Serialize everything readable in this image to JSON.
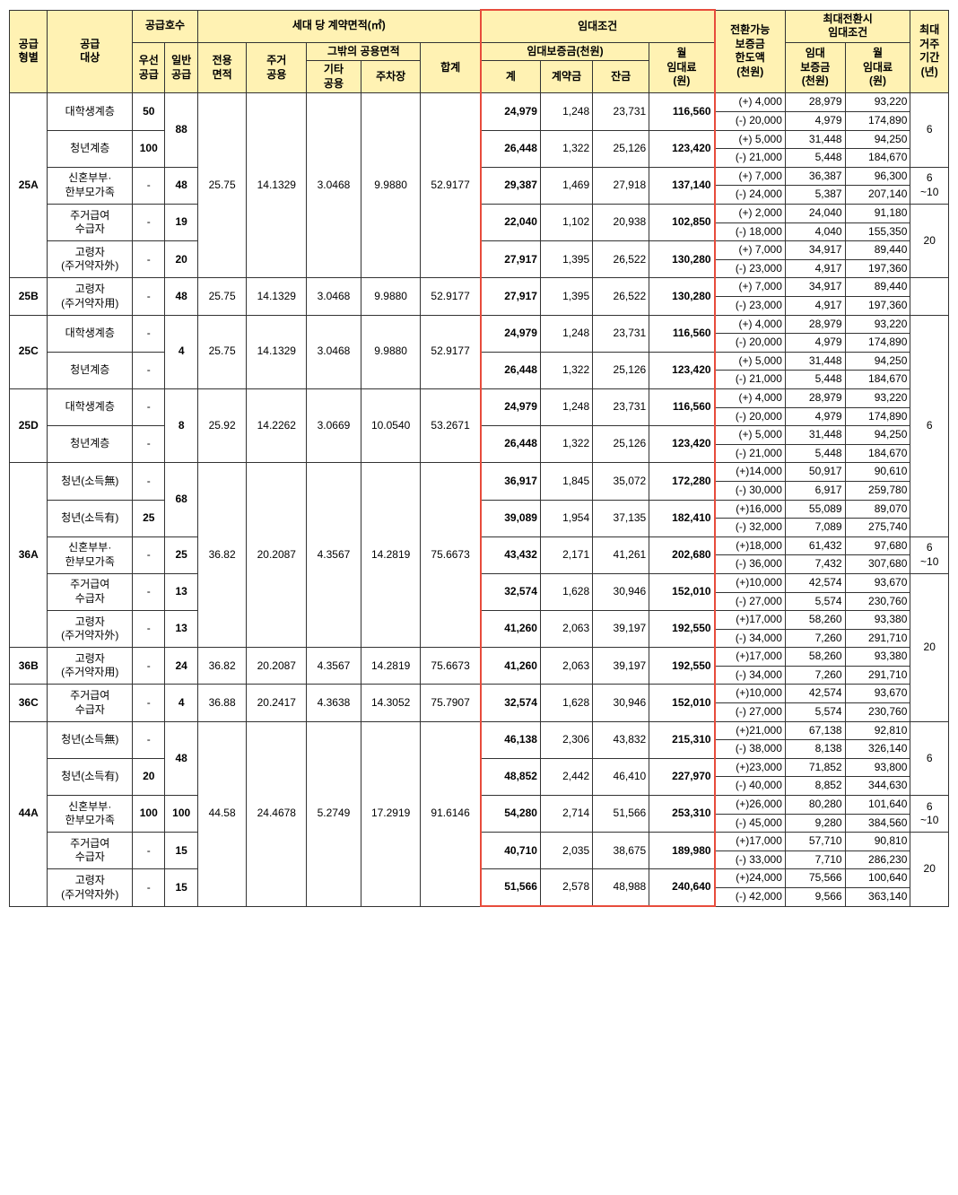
{
  "headers": {
    "supply_type": "공급\n형별",
    "supply_target": "공급\n대상",
    "supply_count": "공급호수",
    "priority": "우선\n공급",
    "general": "일반\n공급",
    "contract_area": "세대 당 계약면적(㎡)",
    "exclusive": "전용\n면적",
    "residential_common": "주거\n공용",
    "other_common_area": "그밖의 공용면적",
    "other_common": "기타\n공용",
    "parking": "주차장",
    "total": "합계",
    "lease_cond": "임대조건",
    "deposit": "임대보증금(천원)",
    "deposit_total": "계",
    "contract_fee": "계약금",
    "balance": "잔금",
    "monthly_rent": "월\n임대료\n(원)",
    "convertible": "전환가능\n보증금\n한도액\n(천원)",
    "max_conv": "최대전환시\n임대조건",
    "conv_deposit": "임대\n보증금\n(천원)",
    "conv_rent": "월\n임대료\n(원)",
    "max_period": "최대\n거주\n기간\n(년)"
  },
  "types": {
    "t25A": "25A",
    "t25B": "25B",
    "t25C": "25C",
    "t25D": "25D",
    "t36A": "36A",
    "t36B": "36B",
    "t36C": "36C",
    "t44A": "44A"
  },
  "targets": {
    "univ": "대학생계층",
    "youth": "청년계층",
    "newlywed": "신혼부부·\n한부모가족",
    "housing_benefit": "주거급여\n수급자",
    "elderly_out": "고령자\n(주거약자外)",
    "elderly_in": "고령자\n(주거약자用)",
    "youth_no_income": "청년(소득無)",
    "youth_income": "청년(소득有)"
  },
  "areas": {
    "a25": {
      "excl": "25.75",
      "res": "14.1329",
      "oth": "3.0468",
      "park": "9.9880",
      "tot": "52.9177"
    },
    "a25D": {
      "excl": "25.92",
      "res": "14.2262",
      "oth": "3.0669",
      "park": "10.0540",
      "tot": "53.2671"
    },
    "a36": {
      "excl": "36.82",
      "res": "20.2087",
      "oth": "4.3567",
      "park": "14.2819",
      "tot": "75.6673"
    },
    "a36C": {
      "excl": "36.88",
      "res": "20.2417",
      "oth": "4.3638",
      "park": "14.3052",
      "tot": "75.7907"
    },
    "a44": {
      "excl": "44.58",
      "res": "24.4678",
      "oth": "5.2749",
      "park": "17.2919",
      "tot": "91.6146"
    }
  },
  "rows": [
    {
      "p": "50",
      "g_span": true,
      "g": "88",
      "d": "24,979",
      "c": "1,248",
      "b": "23,731",
      "r": "116,560",
      "cv": "(+)  4,000",
      "cd": "28,979",
      "cr": "93,220",
      "period": "6"
    },
    {
      "cv": "(-) 20,000",
      "cd": "4,979",
      "cr": "174,890"
    },
    {
      "p": "100",
      "d": "26,448",
      "c": "1,322",
      "b": "25,126",
      "r": "123,420",
      "cv": "(+)  5,000",
      "cd": "31,448",
      "cr": "94,250"
    },
    {
      "cv": "(-) 21,000",
      "cd": "5,448",
      "cr": "184,670"
    },
    {
      "p": "-",
      "g": "48",
      "d": "29,387",
      "c": "1,469",
      "b": "27,918",
      "r": "137,140",
      "cv": "(+)  7,000",
      "cd": "36,387",
      "cr": "96,300",
      "period": "6\n~10"
    },
    {
      "cv": "(-) 24,000",
      "cd": "5,387",
      "cr": "207,140"
    },
    {
      "p": "-",
      "g": "19",
      "d": "22,040",
      "c": "1,102",
      "b": "20,938",
      "r": "102,850",
      "cv": "(+)  2,000",
      "cd": "24,040",
      "cr": "91,180",
      "period": "20"
    },
    {
      "cv": "(-) 18,000",
      "cd": "4,040",
      "cr": "155,350"
    },
    {
      "p": "-",
      "g": "20",
      "d": "27,917",
      "c": "1,395",
      "b": "26,522",
      "r": "130,280",
      "cv": "(+)  7,000",
      "cd": "34,917",
      "cr": "89,440"
    },
    {
      "cv": "(-) 23,000",
      "cd": "4,917",
      "cr": "197,360"
    },
    {
      "p": "-",
      "g": "48",
      "d": "27,917",
      "c": "1,395",
      "b": "26,522",
      "r": "130,280",
      "cv": "(+)  7,000",
      "cd": "34,917",
      "cr": "89,440"
    },
    {
      "cv": "(-) 23,000",
      "cd": "4,917",
      "cr": "197,360"
    },
    {
      "p": "-",
      "g": "4",
      "d": "24,979",
      "c": "1,248",
      "b": "23,731",
      "r": "116,560",
      "cv": "(+)  4,000",
      "cd": "28,979",
      "cr": "93,220",
      "period": "6"
    },
    {
      "cv": "(-) 20,000",
      "cd": "4,979",
      "cr": "174,890"
    },
    {
      "p": "-",
      "d": "26,448",
      "c": "1,322",
      "b": "25,126",
      "r": "123,420",
      "cv": "(+)  5,000",
      "cd": "31,448",
      "cr": "94,250"
    },
    {
      "cv": "(-) 21,000",
      "cd": "5,448",
      "cr": "184,670"
    },
    {
      "p": "-",
      "g": "8",
      "d": "24,979",
      "c": "1,248",
      "b": "23,731",
      "r": "116,560",
      "cv": "(+)  4,000",
      "cd": "28,979",
      "cr": "93,220"
    },
    {
      "cv": "(-) 20,000",
      "cd": "4,979",
      "cr": "174,890"
    },
    {
      "p": "-",
      "d": "26,448",
      "c": "1,322",
      "b": "25,126",
      "r": "123,420",
      "cv": "(+)  5,000",
      "cd": "31,448",
      "cr": "94,250"
    },
    {
      "cv": "(-) 21,000",
      "cd": "5,448",
      "cr": "184,670"
    },
    {
      "p": "-",
      "g": "68",
      "d": "36,917",
      "c": "1,845",
      "b": "35,072",
      "r": "172,280",
      "cv": "(+)14,000",
      "cd": "50,917",
      "cr": "90,610"
    },
    {
      "cv": "(-) 30,000",
      "cd": "6,917",
      "cr": "259,780"
    },
    {
      "p": "25",
      "d": "39,089",
      "c": "1,954",
      "b": "37,135",
      "r": "182,410",
      "cv": "(+)16,000",
      "cd": "55,089",
      "cr": "89,070"
    },
    {
      "cv": "(-) 32,000",
      "cd": "7,089",
      "cr": "275,740"
    },
    {
      "p": "-",
      "g": "25",
      "d": "43,432",
      "c": "2,171",
      "b": "41,261",
      "r": "202,680",
      "cv": "(+)18,000",
      "cd": "61,432",
      "cr": "97,680",
      "period": "6\n~10"
    },
    {
      "cv": "(-) 36,000",
      "cd": "7,432",
      "cr": "307,680"
    },
    {
      "p": "-",
      "g": "13",
      "d": "32,574",
      "c": "1,628",
      "b": "30,946",
      "r": "152,010",
      "cv": "(+)10,000",
      "cd": "42,574",
      "cr": "93,670",
      "period": "20"
    },
    {
      "cv": "(-) 27,000",
      "cd": "5,574",
      "cr": "230,760"
    },
    {
      "p": "-",
      "g": "13",
      "d": "41,260",
      "c": "2,063",
      "b": "39,197",
      "r": "192,550",
      "cv": "(+)17,000",
      "cd": "58,260",
      "cr": "93,380"
    },
    {
      "cv": "(-) 34,000",
      "cd": "7,260",
      "cr": "291,710"
    },
    {
      "p": "-",
      "g": "24",
      "d": "41,260",
      "c": "2,063",
      "b": "39,197",
      "r": "192,550",
      "cv": "(+)17,000",
      "cd": "58,260",
      "cr": "93,380"
    },
    {
      "cv": "(-) 34,000",
      "cd": "7,260",
      "cr": "291,710"
    },
    {
      "p": "-",
      "g": "4",
      "d": "32,574",
      "c": "1,628",
      "b": "30,946",
      "r": "152,010",
      "cv": "(+)10,000",
      "cd": "42,574",
      "cr": "93,670"
    },
    {
      "cv": "(-) 27,000",
      "cd": "5,574",
      "cr": "230,760"
    },
    {
      "p": "-",
      "g": "48",
      "d": "46,138",
      "c": "2,306",
      "b": "43,832",
      "r": "215,310",
      "cv": "(+)21,000",
      "cd": "67,138",
      "cr": "92,810",
      "period": "6"
    },
    {
      "cv": "(-) 38,000",
      "cd": "8,138",
      "cr": "326,140"
    },
    {
      "p": "20",
      "d": "48,852",
      "c": "2,442",
      "b": "46,410",
      "r": "227,970",
      "cv": "(+)23,000",
      "cd": "71,852",
      "cr": "93,800"
    },
    {
      "cv": "(-) 40,000",
      "cd": "8,852",
      "cr": "344,630"
    },
    {
      "p": "100",
      "g": "100",
      "d": "54,280",
      "c": "2,714",
      "b": "51,566",
      "r": "253,310",
      "cv": "(+)26,000",
      "cd": "80,280",
      "cr": "101,640",
      "period": "6\n~10"
    },
    {
      "cv": "(-) 45,000",
      "cd": "9,280",
      "cr": "384,560"
    },
    {
      "p": "-",
      "g": "15",
      "d": "40,710",
      "c": "2,035",
      "b": "38,675",
      "r": "189,980",
      "cv": "(+)17,000",
      "cd": "57,710",
      "cr": "90,810",
      "period": "20"
    },
    {
      "cv": "(-) 33,000",
      "cd": "7,710",
      "cr": "286,230"
    },
    {
      "p": "-",
      "g": "15",
      "d": "51,566",
      "c": "2,578",
      "b": "48,988",
      "r": "240,640",
      "cv": "(+)24,000",
      "cd": "75,566",
      "cr": "100,640"
    },
    {
      "cv": "(-) 42,000",
      "cd": "9,566",
      "cr": "363,140"
    }
  ],
  "red_border_color": "#e74c3c"
}
